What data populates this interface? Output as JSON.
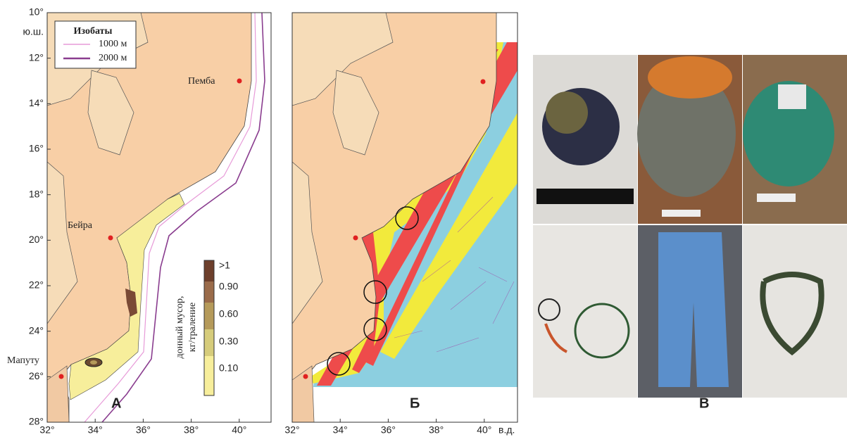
{
  "panel_a": {
    "label": "А",
    "y_axis": [
      "10°",
      "12°",
      "14°",
      "16°",
      "18°",
      "20°",
      "22°",
      "24°",
      "26°",
      "28°"
    ],
    "y_axis_unit": "ю.ш.",
    "x_axis": [
      "32°",
      "34°",
      "36°",
      "38°",
      "40°"
    ],
    "legend": {
      "title": "Изобаты",
      "items": [
        "1000 м",
        "2000 м"
      ]
    },
    "cities": [
      "Пемба",
      "Бейра",
      "Мапуту"
    ],
    "colorbar": {
      "title_lines": [
        "донный мусор,",
        "кг/траление"
      ],
      "labels": [
        ">1",
        "0.90",
        "0.60",
        "0.30",
        "0.10"
      ]
    }
  },
  "panel_b": {
    "label": "Б",
    "x_axis": [
      "32°",
      "34°",
      "36°",
      "38°",
      "40°"
    ],
    "x_axis_unit": "в.д."
  },
  "panel_c": {
    "label": "В"
  }
}
